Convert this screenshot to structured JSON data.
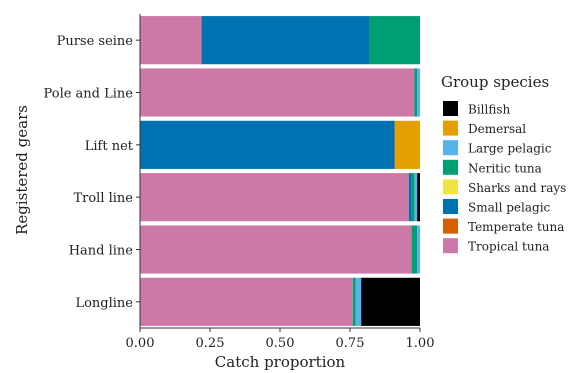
{
  "chart_data": {
    "type": "bar",
    "orientation": "horizontal",
    "stacked": true,
    "title": "",
    "xlabel": "Catch proportion",
    "ylabel": "Registered gears",
    "xlim": [
      0,
      1
    ],
    "xticks": [
      "0.00",
      "0.25",
      "0.50",
      "0.75",
      "1.00"
    ],
    "grid": false,
    "legend_position": "right",
    "legend_title": "Group species",
    "categories": [
      "Purse seine",
      "Pole and Line",
      "Lift net",
      "Troll line",
      "Hand line",
      "Longline"
    ],
    "series": [
      {
        "name": "Tropical tuna",
        "color": "#CC79A7",
        "values": [
          0.22,
          0.98,
          0.0,
          0.96,
          0.97,
          0.76
        ]
      },
      {
        "name": "Temperate tuna",
        "color": "#D55E00",
        "values": [
          0.0,
          0.0,
          0.0,
          0.0,
          0.0,
          0.0
        ]
      },
      {
        "name": "Small pelagic",
        "color": "#0072B2",
        "values": [
          0.6,
          0.0,
          0.91,
          0.01,
          0.0,
          0.0
        ]
      },
      {
        "name": "Sharks and rays",
        "color": "#F0E442",
        "values": [
          0.0,
          0.0,
          0.0,
          0.0,
          0.0,
          0.0
        ]
      },
      {
        "name": "Neritic tuna",
        "color": "#009E73",
        "values": [
          0.18,
          0.01,
          0.0,
          0.01,
          0.02,
          0.01
        ]
      },
      {
        "name": "Large pelagic",
        "color": "#56B4E9",
        "values": [
          0.0,
          0.01,
          0.0,
          0.01,
          0.01,
          0.02
        ]
      },
      {
        "name": "Demersal",
        "color": "#E69F00",
        "values": [
          0.0,
          0.0,
          0.09,
          0.0,
          0.0,
          0.0
        ]
      },
      {
        "name": "Billfish",
        "color": "#000000",
        "values": [
          0.0,
          0.0,
          0.0,
          0.01,
          0.0,
          0.21
        ]
      }
    ],
    "legend_order": [
      "Billfish",
      "Demersal",
      "Large pelagic",
      "Neritic tuna",
      "Sharks and rays",
      "Small pelagic",
      "Temperate tuna",
      "Tropical tuna"
    ]
  }
}
